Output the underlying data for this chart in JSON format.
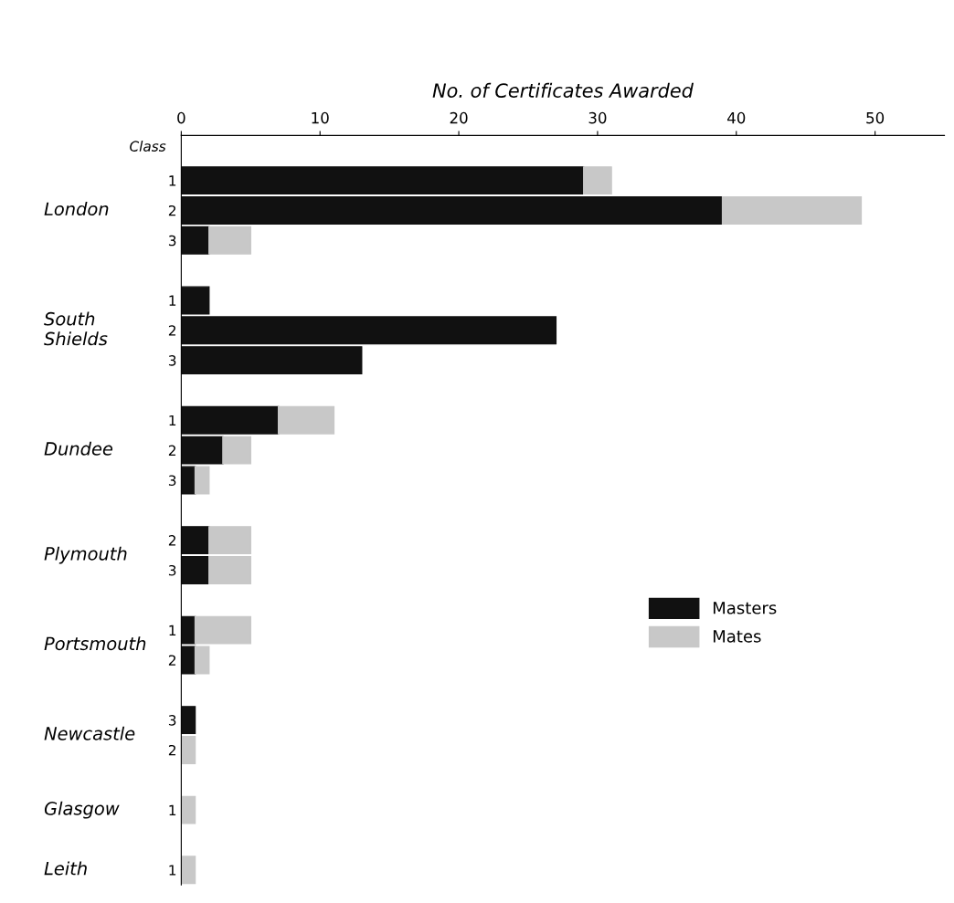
{
  "chart_data": {
    "type": "bar",
    "orientation": "horizontal",
    "stacked": true,
    "title": "No. of Certificates Awarded",
    "ylabel": "Class",
    "categories": [
      "1",
      "2",
      "3",
      null,
      "1",
      "2",
      "3",
      null,
      "1",
      "2",
      "3",
      null,
      "2",
      "3",
      null,
      "1",
      "2",
      null,
      "3",
      "2",
      null,
      "1",
      null,
      "1"
    ],
    "series": [
      {
        "name": "Masters",
        "color": "#111111",
        "values": [
          29,
          39,
          2,
          null,
          2,
          27,
          13,
          null,
          7,
          3,
          1,
          null,
          2,
          2,
          null,
          1,
          1,
          null,
          1,
          null,
          null,
          null,
          null,
          null
        ]
      },
      {
        "name": "Mates",
        "color": "#c8c8c8",
        "values": [
          2,
          10,
          3,
          null,
          null,
          null,
          null,
          null,
          4,
          2,
          1,
          null,
          3,
          3,
          null,
          4,
          1,
          null,
          null,
          1,
          null,
          1,
          null,
          1
        ]
      }
    ],
    "annotations": [
      "London",
      "South\nShields",
      "Dundee",
      "Plymouth",
      "Portsmouth",
      "Newcastle",
      "Glasgow",
      "Leith"
    ],
    "xlim": [
      0,
      55
    ],
    "xticks": [
      0,
      10,
      20,
      30,
      40,
      50
    ],
    "grid": false,
    "legend": "right"
  }
}
